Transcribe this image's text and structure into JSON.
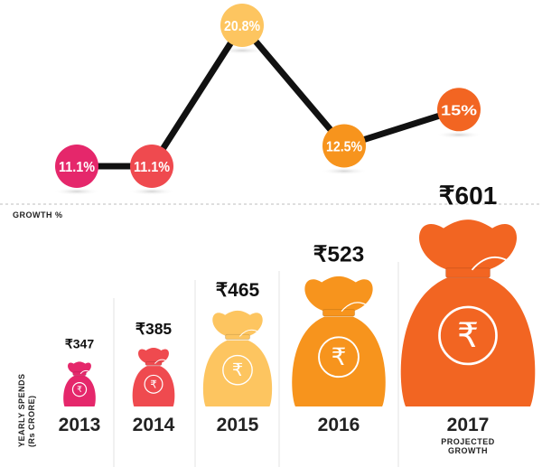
{
  "chart_data": [
    {
      "type": "line",
      "xlabel": "GROWTH %",
      "categories": [
        "2013",
        "2014",
        "2015",
        "2016",
        "2017"
      ],
      "values": [
        11.1,
        11.1,
        20.8,
        12.5,
        15
      ],
      "labels": [
        "11.1%",
        "11.1%",
        "20.8%",
        "12.5%",
        "15%"
      ],
      "colors": [
        "#e5276b",
        "#ef4a4f",
        "#fdc560",
        "#f7941d",
        "#f26522"
      ]
    },
    {
      "type": "bar",
      "ylabel": "YEARLY SPENDS (Rs CRORE)",
      "categories": [
        "2013",
        "2014",
        "2015",
        "2016",
        "2017"
      ],
      "values": [
        347,
        385,
        465,
        523,
        601
      ],
      "labels": [
        "₹347",
        "₹385",
        "₹465",
        "₹523",
        "₹601"
      ],
      "colors": [
        "#e5276b",
        "#ef4a4f",
        "#fdc560",
        "#f7941d",
        "#f26522"
      ],
      "annotations": [
        {
          "category": "2017",
          "text_line1": "PROJECTED",
          "text_line2": "GROWTH"
        }
      ]
    }
  ]
}
